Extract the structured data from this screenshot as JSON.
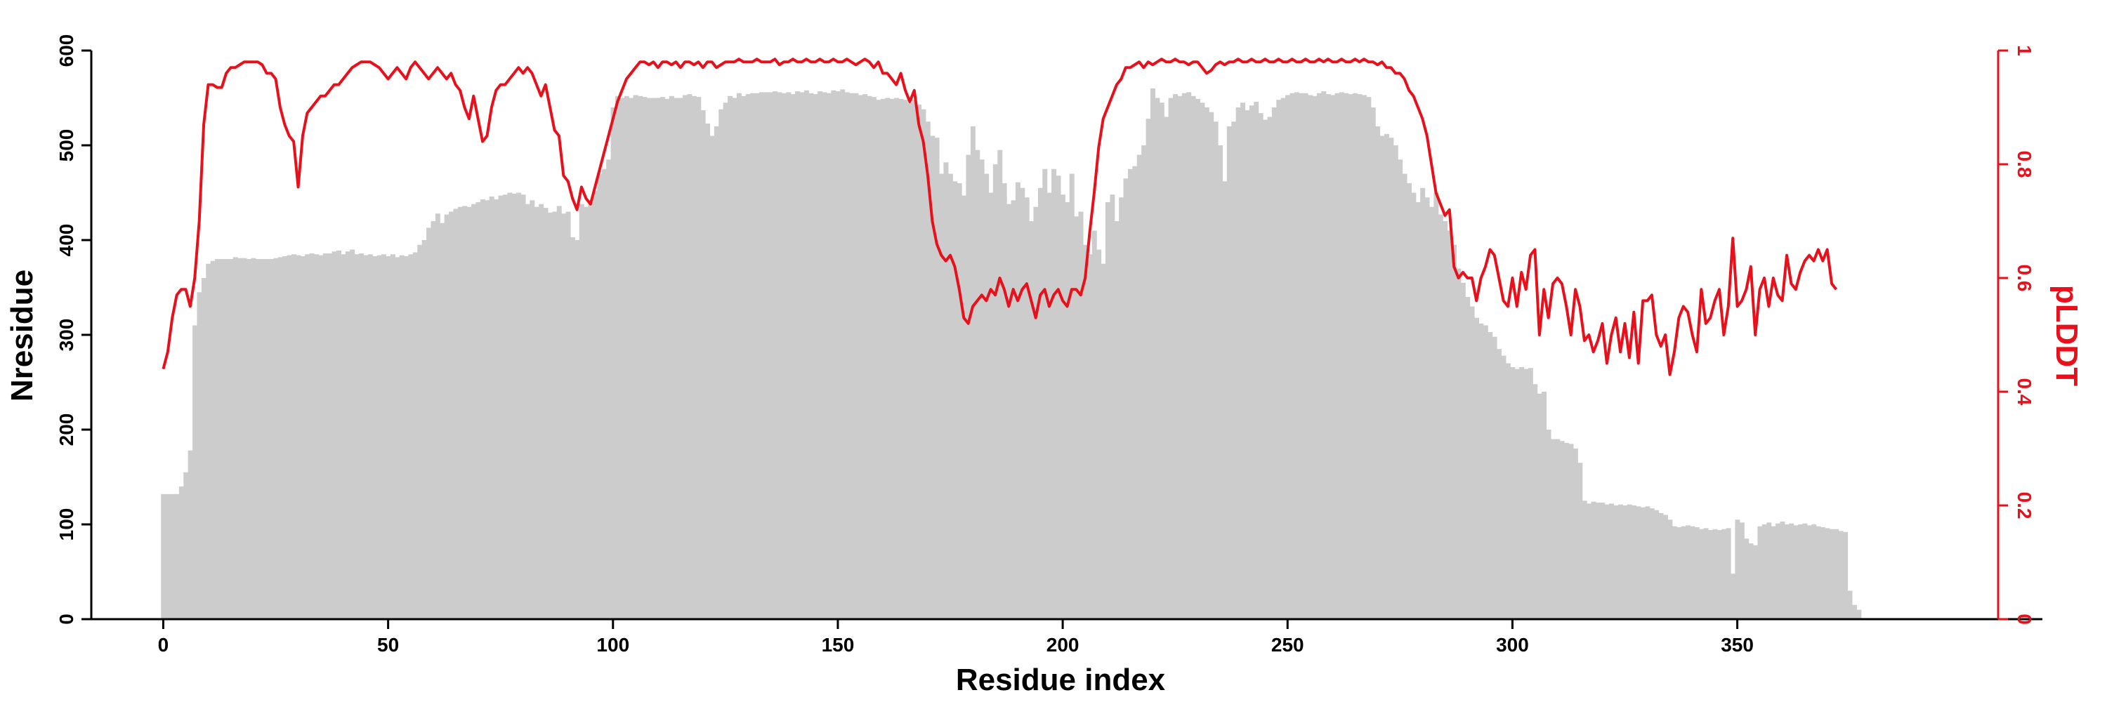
{
  "chart_data": {
    "type": "bar",
    "xlabel": "Residue index",
    "ylabel": "Nresidue",
    "y2label": "pLDDT",
    "xlim": [
      -16,
      408
    ],
    "ylim": [
      0,
      600
    ],
    "y2lim": [
      0,
      1
    ],
    "xticks": [
      0,
      50,
      100,
      150,
      200,
      250,
      300,
      350
    ],
    "yticks": [
      0,
      100,
      200,
      300,
      400,
      500,
      600
    ],
    "y2ticks": [
      0,
      0.2,
      0.4,
      0.6,
      0.8,
      1
    ],
    "grid": false,
    "colors": {
      "bars": "#cccccc",
      "line": "#e8101b",
      "axis": "#000000",
      "right_axis": "#e8101b"
    },
    "series": [
      {
        "name": "Nresidue",
        "type": "bar",
        "x_start": 0,
        "values": [
          132,
          132,
          132,
          132,
          140,
          155,
          178,
          310,
          345,
          360,
          375,
          378,
          380,
          380,
          380,
          380,
          382,
          381,
          381,
          380,
          381,
          380,
          380,
          380,
          380,
          381,
          382,
          383,
          384,
          385,
          384,
          383,
          385,
          386,
          385,
          384,
          386,
          386,
          388,
          389,
          385,
          388,
          390,
          385,
          386,
          384,
          385,
          383,
          384,
          385,
          383,
          385,
          382,
          384,
          383,
          385,
          387,
          395,
          400,
          413,
          420,
          428,
          418,
          427,
          430,
          433,
          435,
          436,
          435,
          438,
          440,
          443,
          442,
          446,
          443,
          447,
          448,
          450,
          449,
          450,
          448,
          438,
          442,
          435,
          438,
          434,
          429,
          430,
          436,
          428,
          430,
          403,
          400,
          438,
          435,
          440,
          452,
          470,
          475,
          485,
          540,
          552,
          550,
          552,
          550,
          553,
          552,
          551,
          550,
          550,
          550,
          551,
          549,
          552,
          550,
          550,
          553,
          554,
          552,
          551,
          537,
          523,
          510,
          520,
          538,
          545,
          552,
          550,
          555,
          552,
          554,
          555,
          555,
          556,
          556,
          556,
          557,
          556,
          555,
          556,
          554,
          557,
          556,
          558,
          555,
          554,
          557,
          556,
          555,
          558,
          557,
          559,
          556,
          555,
          555,
          553,
          554,
          552,
          551,
          548,
          549,
          550,
          549,
          550,
          549,
          548,
          545,
          548,
          543,
          538,
          525,
          510,
          508,
          470,
          482,
          470,
          462,
          460,
          447,
          490,
          520,
          495,
          485,
          470,
          450,
          480,
          495,
          460,
          438,
          442,
          461,
          455,
          445,
          420,
          435,
          455,
          475,
          450,
          475,
          468,
          448,
          440,
          470,
          425,
          430,
          395,
          385,
          410,
          390,
          375,
          440,
          448,
          420,
          445,
          465,
          475,
          478,
          490,
          500,
          528,
          560,
          550,
          545,
          530,
          550,
          554,
          552,
          555,
          556,
          552,
          549,
          545,
          540,
          535,
          525,
          500,
          462,
          520,
          525,
          540,
          545,
          537,
          542,
          546,
          534,
          527,
          530,
          540,
          548,
          550,
          553,
          555,
          556,
          555,
          555,
          553,
          552,
          555,
          557,
          554,
          553,
          555,
          556,
          555,
          554,
          555,
          554,
          553,
          551,
          540,
          520,
          510,
          512,
          508,
          500,
          485,
          470,
          460,
          450,
          440,
          455,
          445,
          435,
          450,
          427,
          420,
          410,
          395,
          370,
          355,
          340,
          330,
          318,
          312,
          310,
          303,
          298,
          285,
          278,
          270,
          266,
          264,
          266,
          264,
          265,
          248,
          238,
          240,
          200,
          190,
          190,
          188,
          186,
          185,
          180,
          165,
          125,
          122,
          124,
          123,
          123,
          121,
          122,
          120,
          121,
          120,
          121,
          120,
          119,
          118,
          119,
          117,
          115,
          112,
          110,
          105,
          98,
          97,
          98,
          99,
          98,
          97,
          95,
          96,
          94,
          95,
          94,
          95,
          96,
          48,
          105,
          102,
          85,
          80,
          78,
          98,
          100,
          102,
          98,
          101,
          103,
          100,
          101,
          99,
          100,
          101,
          99,
          100,
          98,
          97,
          96,
          95,
          95,
          93,
          92,
          30,
          15,
          10
        ]
      },
      {
        "name": "pLDDT",
        "type": "line",
        "axis": "right",
        "x_start": 0,
        "values": [
          0.44,
          0.47,
          0.53,
          0.57,
          0.58,
          0.58,
          0.55,
          0.6,
          0.7,
          0.87,
          0.94,
          0.94,
          0.935,
          0.935,
          0.96,
          0.97,
          0.97,
          0.975,
          0.98,
          0.98,
          0.98,
          0.98,
          0.975,
          0.96,
          0.96,
          0.95,
          0.9,
          0.87,
          0.85,
          0.84,
          0.76,
          0.85,
          0.89,
          0.9,
          0.91,
          0.92,
          0.92,
          0.93,
          0.94,
          0.94,
          0.95,
          0.96,
          0.97,
          0.975,
          0.98,
          0.98,
          0.98,
          0.975,
          0.97,
          0.96,
          0.95,
          0.96,
          0.97,
          0.96,
          0.95,
          0.97,
          0.98,
          0.97,
          0.96,
          0.95,
          0.96,
          0.97,
          0.96,
          0.95,
          0.96,
          0.94,
          0.93,
          0.9,
          0.88,
          0.92,
          0.88,
          0.84,
          0.85,
          0.9,
          0.93,
          0.94,
          0.94,
          0.95,
          0.96,
          0.97,
          0.96,
          0.97,
          0.96,
          0.94,
          0.92,
          0.94,
          0.9,
          0.86,
          0.85,
          0.78,
          0.77,
          0.74,
          0.72,
          0.76,
          0.74,
          0.73,
          0.76,
          0.79,
          0.82,
          0.85,
          0.88,
          0.91,
          0.93,
          0.95,
          0.96,
          0.97,
          0.98,
          0.98,
          0.975,
          0.98,
          0.97,
          0.98,
          0.98,
          0.975,
          0.98,
          0.97,
          0.98,
          0.98,
          0.975,
          0.98,
          0.97,
          0.98,
          0.98,
          0.97,
          0.975,
          0.98,
          0.98,
          0.98,
          0.985,
          0.98,
          0.98,
          0.98,
          0.985,
          0.98,
          0.98,
          0.98,
          0.985,
          0.975,
          0.98,
          0.98,
          0.985,
          0.98,
          0.98,
          0.985,
          0.98,
          0.98,
          0.985,
          0.98,
          0.98,
          0.985,
          0.98,
          0.98,
          0.985,
          0.98,
          0.975,
          0.98,
          0.985,
          0.98,
          0.97,
          0.98,
          0.96,
          0.96,
          0.95,
          0.94,
          0.96,
          0.93,
          0.91,
          0.93,
          0.87,
          0.84,
          0.78,
          0.7,
          0.66,
          0.64,
          0.63,
          0.64,
          0.62,
          0.58,
          0.53,
          0.52,
          0.55,
          0.56,
          0.57,
          0.56,
          0.58,
          0.57,
          0.6,
          0.58,
          0.55,
          0.58,
          0.56,
          0.58,
          0.59,
          0.56,
          0.53,
          0.57,
          0.58,
          0.55,
          0.57,
          0.58,
          0.56,
          0.55,
          0.58,
          0.58,
          0.57,
          0.6,
          0.68,
          0.75,
          0.83,
          0.88,
          0.9,
          0.92,
          0.94,
          0.95,
          0.97,
          0.97,
          0.975,
          0.98,
          0.97,
          0.98,
          0.975,
          0.98,
          0.985,
          0.98,
          0.98,
          0.985,
          0.98,
          0.98,
          0.975,
          0.98,
          0.98,
          0.97,
          0.96,
          0.965,
          0.975,
          0.98,
          0.975,
          0.98,
          0.98,
          0.985,
          0.98,
          0.98,
          0.985,
          0.98,
          0.98,
          0.985,
          0.98,
          0.98,
          0.985,
          0.98,
          0.98,
          0.985,
          0.98,
          0.98,
          0.985,
          0.98,
          0.98,
          0.985,
          0.98,
          0.985,
          0.98,
          0.98,
          0.985,
          0.98,
          0.98,
          0.985,
          0.98,
          0.985,
          0.98,
          0.98,
          0.975,
          0.98,
          0.97,
          0.97,
          0.96,
          0.96,
          0.95,
          0.93,
          0.92,
          0.9,
          0.88,
          0.85,
          0.8,
          0.75,
          0.73,
          0.71,
          0.72,
          0.62,
          0.6,
          0.61,
          0.6,
          0.6,
          0.56,
          0.6,
          0.62,
          0.65,
          0.64,
          0.6,
          0.56,
          0.55,
          0.6,
          0.55,
          0.61,
          0.58,
          0.64,
          0.65,
          0.5,
          0.58,
          0.53,
          0.59,
          0.6,
          0.59,
          0.55,
          0.5,
          0.58,
          0.55,
          0.49,
          0.5,
          0.47,
          0.49,
          0.52,
          0.45,
          0.5,
          0.53,
          0.47,
          0.52,
          0.46,
          0.54,
          0.45,
          0.56,
          0.56,
          0.57,
          0.5,
          0.48,
          0.5,
          0.43,
          0.47,
          0.53,
          0.55,
          0.54,
          0.5,
          0.47,
          0.58,
          0.52,
          0.53,
          0.56,
          0.58,
          0.5,
          0.55,
          0.67,
          0.55,
          0.56,
          0.58,
          0.62,
          0.5,
          0.58,
          0.6,
          0.55,
          0.6,
          0.57,
          0.56,
          0.64,
          0.59,
          0.58,
          0.61,
          0.63,
          0.64,
          0.63,
          0.65,
          0.63,
          0.65,
          0.59,
          0.58
        ]
      }
    ]
  }
}
